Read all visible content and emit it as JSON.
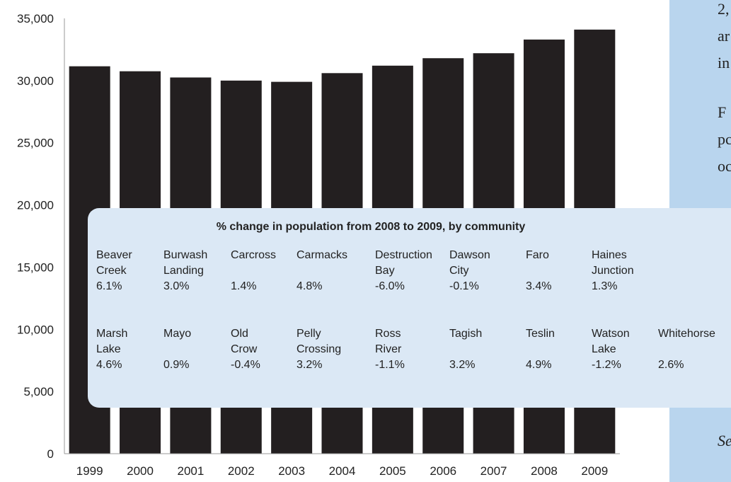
{
  "side_text": [
    "2,",
    "ar",
    "in",
    "F",
    "pc",
    "oc",
    "Se"
  ],
  "chart_data": {
    "type": "bar",
    "categories": [
      "1999",
      "2000",
      "2001",
      "2002",
      "2003",
      "2004",
      "2005",
      "2006",
      "2007",
      "2008",
      "2009"
    ],
    "values": [
      31150,
      30750,
      30250,
      30000,
      29900,
      30600,
      31200,
      31800,
      32200,
      33300,
      34100
    ],
    "ylim": [
      0,
      35000
    ],
    "yticks": [
      0,
      5000,
      10000,
      15000,
      20000,
      25000,
      30000,
      35000
    ],
    "ytick_labels": [
      "0",
      "5,000",
      "10,000",
      "15,000",
      "20,000",
      "25,000",
      "30,000",
      "35,000"
    ],
    "bar_color": "#231f20"
  },
  "inset": {
    "title": "% change in population from 2008 to 2009, by community",
    "rows": [
      [
        {
          "name": [
            "Beaver",
            "Creek"
          ],
          "value": "6.1%"
        },
        {
          "name": [
            "Burwash",
            "Landing"
          ],
          "value": "3.0%"
        },
        {
          "name": [
            "Carcross"
          ],
          "value": "1.4%"
        },
        {
          "name": [
            "Carmacks"
          ],
          "value": "4.8%"
        },
        {
          "name": [
            "Destruction",
            "Bay"
          ],
          "value": "-6.0%"
        },
        {
          "name": [
            "Dawson",
            "City"
          ],
          "value": "-0.1%"
        },
        {
          "name": [
            "Faro"
          ],
          "value": "3.4%"
        },
        {
          "name": [
            "Haines",
            "Junction"
          ],
          "value": "1.3%"
        }
      ],
      [
        {
          "name": [
            "Marsh",
            "Lake"
          ],
          "value": "4.6%"
        },
        {
          "name": [
            "Mayo"
          ],
          "value": "0.9%"
        },
        {
          "name": [
            "Old",
            "Crow"
          ],
          "value": "-0.4%"
        },
        {
          "name": [
            "Pelly",
            "Crossing"
          ],
          "value": "3.2%"
        },
        {
          "name": [
            "Ross",
            "River"
          ],
          "value": "-1.1%"
        },
        {
          "name": [
            "Tagish"
          ],
          "value": "3.2%"
        },
        {
          "name": [
            "Teslin"
          ],
          "value": "4.9%"
        },
        {
          "name": [
            "Watson",
            "Lake"
          ],
          "value": "-1.2%"
        },
        {
          "name": [
            "Whitehorse"
          ],
          "value": "2.6%"
        }
      ]
    ]
  }
}
